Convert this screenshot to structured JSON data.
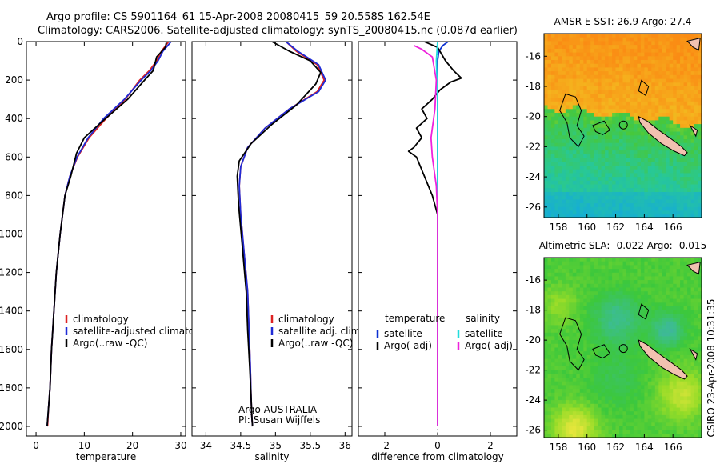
{
  "header": {
    "line1": "Argo profile: CS 5901164_61 15-Apr-2008 20080415_59 20.558S 162.54E",
    "line2": "Climatology: CARS2006. Satellite-adjusted climatology: synTS_20080415.nc (0.087d earlier)"
  },
  "credit": "CSIRO 23-Apr-2008 10:31:35",
  "colors": {
    "climatology": "#dd2222",
    "satellite": "#1f2bd6",
    "argo": "#000000",
    "satellite_diff_temp": "#0a2fd0",
    "satellite_diff_sal": "#22dddd",
    "argo_diff_sal": "#ee22dd",
    "profile_marker": "#000000"
  },
  "chart_data": [
    {
      "id": "temperature",
      "type": "line",
      "xlabel": "temperature",
      "xlim": [
        -2,
        31
      ],
      "xticks": [
        0,
        10,
        20,
        30
      ],
      "ylim": [
        2050,
        0
      ],
      "yticks": [
        0,
        200,
        400,
        600,
        800,
        1000,
        1200,
        1400,
        1600,
        1800,
        2000
      ],
      "legend": [
        {
          "label": "climatology",
          "color": "#dd2222"
        },
        {
          "label": "satellite-adjusted climatology",
          "color": "#1f2bd6"
        },
        {
          "label": "Argo(..raw -QC)",
          "color": "#000000"
        }
      ],
      "series": [
        {
          "name": "climatology",
          "color": "#dd2222",
          "x": [
            27.5,
            26.0,
            25.0,
            23.5,
            21.5,
            18.5,
            14.5,
            11.0,
            8.6,
            7.0,
            6.0,
            5.0,
            4.2,
            3.7,
            3.2,
            2.9,
            2.6,
            2.4
          ],
          "depth": [
            0,
            50,
            100,
            150,
            200,
            300,
            400,
            500,
            600,
            700,
            800,
            1000,
            1200,
            1400,
            1600,
            1800,
            1900,
            2000
          ]
        },
        {
          "name": "satellite-adjusted climatology",
          "color": "#1f2bd6",
          "x": [
            28.0,
            26.3,
            25.3,
            23.8,
            21.8,
            18.3,
            14.0,
            10.8,
            8.5,
            7.0,
            6.0,
            5.0,
            4.2,
            3.7,
            3.2,
            2.9,
            2.6,
            2.3
          ],
          "depth": [
            0,
            50,
            100,
            150,
            200,
            300,
            400,
            500,
            600,
            700,
            800,
            1000,
            1200,
            1400,
            1600,
            1800,
            1900,
            2000
          ]
        },
        {
          "name": "Argo(..raw -QC)",
          "color": "#000000",
          "x": [
            27.0,
            26.8,
            25.0,
            24.3,
            22.5,
            19.0,
            13.5,
            10.0,
            8.4,
            7.2,
            6.0,
            5.0,
            4.2,
            3.7,
            3.2,
            2.9,
            2.6,
            2.3
          ],
          "depth": [
            5,
            30,
            80,
            150,
            200,
            300,
            420,
            500,
            580,
            700,
            800,
            1000,
            1200,
            1400,
            1600,
            1800,
            1900,
            2000
          ]
        }
      ]
    },
    {
      "id": "salinity",
      "type": "line",
      "xlabel": "salinity",
      "xlim": [
        33.8,
        36.1
      ],
      "xticks": [
        34,
        34.5,
        35,
        35.5,
        36
      ],
      "ylim": [
        2050,
        0
      ],
      "legend": [
        {
          "label": "climatology",
          "color": "#dd2222"
        },
        {
          "label": "satellite adj. clim.",
          "color": "#1f2bd6"
        },
        {
          "label": "Argo(..raw -QC)",
          "color": "#000000"
        }
      ],
      "annotation": [
        "Argo AUSTRALIA",
        "PI: Susan Wijffels"
      ],
      "series": [
        {
          "name": "climatology",
          "color": "#dd2222",
          "x": [
            35.15,
            35.3,
            35.6,
            35.7,
            35.6,
            35.2,
            34.85,
            34.6,
            34.5,
            34.48,
            34.5,
            34.55,
            34.6,
            34.62,
            34.64,
            34.65,
            34.66,
            34.67
          ],
          "depth": [
            0,
            50,
            120,
            200,
            260,
            350,
            450,
            550,
            650,
            750,
            900,
            1100,
            1300,
            1500,
            1700,
            1850,
            1950,
            2000
          ]
        },
        {
          "name": "satellite adj. clim.",
          "color": "#1f2bd6",
          "x": [
            35.15,
            35.32,
            35.62,
            35.72,
            35.62,
            35.2,
            34.85,
            34.6,
            34.5,
            34.48,
            34.5,
            34.55,
            34.6,
            34.62,
            34.64,
            34.65,
            34.66,
            34.67
          ],
          "depth": [
            0,
            50,
            120,
            200,
            260,
            350,
            450,
            550,
            650,
            750,
            900,
            1100,
            1300,
            1500,
            1700,
            1850,
            1950,
            2000
          ]
        },
        {
          "name": "Argo(..raw -QC)",
          "color": "#000000",
          "x": [
            34.95,
            35.2,
            35.5,
            35.65,
            35.58,
            35.3,
            34.95,
            34.65,
            34.48,
            34.45,
            34.47,
            34.52,
            34.58,
            34.6,
            34.63,
            34.65,
            34.66,
            34.67
          ],
          "depth": [
            0,
            50,
            100,
            160,
            220,
            330,
            430,
            530,
            620,
            700,
            850,
            1050,
            1300,
            1500,
            1700,
            1850,
            1950,
            2000
          ]
        }
      ]
    },
    {
      "id": "difference",
      "type": "line",
      "xlabel": "difference from climatology",
      "xlim": [
        -3,
        3
      ],
      "xticks": [
        -2,
        0,
        2
      ],
      "ylim": [
        2050,
        0
      ],
      "legend": [
        {
          "group": "temperature",
          "items": [
            {
              "label": "satellite",
              "color": "#0a2fd0"
            },
            {
              "label": "Argo(-adj)",
              "color": "#000000"
            }
          ]
        },
        {
          "group": "salinity",
          "items": [
            {
              "label": "satellite",
              "color": "#22dddd"
            },
            {
              "label": "Argo(-adj)",
              "color": "#ee22dd"
            }
          ]
        }
      ],
      "series": [
        {
          "name": "temperature satellite",
          "color": "#0a2fd0",
          "x": [
            0.4,
            0.2,
            0.05,
            0.0,
            0.0,
            0.0,
            0.0
          ],
          "depth": [
            0,
            20,
            50,
            100,
            300,
            1000,
            2000
          ]
        },
        {
          "name": "temperature Argo(-adj)",
          "color": "#000000",
          "x": [
            -0.5,
            0.0,
            0.3,
            0.6,
            0.9,
            0.5,
            0.1,
            -0.2,
            -0.6,
            -0.4,
            -0.8,
            -0.6,
            -0.9,
            -1.1,
            -0.8,
            -0.5,
            -0.2,
            0.0,
            0.0,
            0.0
          ],
          "depth": [
            0,
            30,
            100,
            150,
            190,
            210,
            250,
            300,
            350,
            400,
            450,
            500,
            550,
            570,
            600,
            700,
            800,
            900,
            1300,
            2000
          ]
        },
        {
          "name": "salinity satellite",
          "color": "#22dddd",
          "x": [
            0.0,
            -0.05,
            0.0,
            0.0,
            0.0
          ],
          "depth": [
            0,
            100,
            300,
            1000,
            2000
          ]
        },
        {
          "name": "salinity Argo(-adj)",
          "color": "#ee22dd",
          "x": [
            -0.9,
            -0.6,
            -0.4,
            -0.2,
            -0.05,
            -0.1,
            -0.2,
            -0.25,
            -0.2,
            -0.05,
            0.0,
            0.0,
            0.0
          ],
          "depth": [
            20,
            40,
            60,
            80,
            200,
            350,
            450,
            500,
            600,
            750,
            900,
            1300,
            2000
          ]
        }
      ]
    },
    {
      "id": "sst-map",
      "type": "heatmap",
      "title": "AMSR-E SST: 26.9 Argo: 27.4",
      "xlim": [
        157,
        168
      ],
      "ylim": [
        -26.7,
        -14.5
      ],
      "xticks": [
        158,
        160,
        162,
        164,
        166
      ],
      "yticks": [
        -16,
        -18,
        -20,
        -22,
        -24,
        -26
      ],
      "marker": {
        "lon": 162.54,
        "lat": -20.558
      }
    },
    {
      "id": "sla-map",
      "type": "heatmap",
      "title": "Altimetric SLA: -0.022 Argo: -0.015",
      "xlim": [
        157,
        168
      ],
      "ylim": [
        -26.5,
        -14.5
      ],
      "xticks": [
        158,
        160,
        162,
        164,
        166
      ],
      "yticks": [
        -16,
        -18,
        -20,
        -22,
        -24,
        -26
      ],
      "marker": {
        "lon": 162.54,
        "lat": -20.558
      }
    }
  ]
}
